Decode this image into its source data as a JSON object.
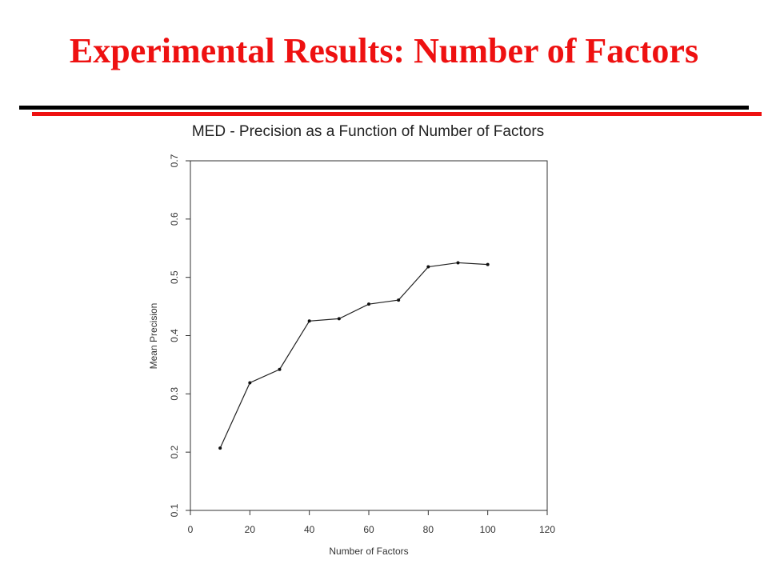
{
  "slide": {
    "title": "Experimental Results: Number of Factors",
    "colors": {
      "title": "#ee1111",
      "rule_top": "#000000",
      "rule_bottom": "#ee1111"
    }
  },
  "chart_data": {
    "type": "line",
    "title": "MED - Precision as a Function of Number of Factors",
    "xlabel": "Number of Factors",
    "ylabel": "Mean Precision",
    "xlim": [
      0,
      120
    ],
    "ylim": [
      0.1,
      0.7
    ],
    "xticks": [
      "0",
      "20",
      "40",
      "60",
      "80",
      "100",
      "120"
    ],
    "yticks": [
      "0.1",
      "0.2",
      "0.3",
      "0.4",
      "0.5",
      "0.6",
      "0.7"
    ],
    "grid": false,
    "series": [
      {
        "x": [
          10,
          20,
          30,
          40,
          50,
          60,
          70,
          80,
          90,
          100
        ],
        "y": [
          0.207,
          0.319,
          0.342,
          0.425,
          0.429,
          0.454,
          0.461,
          0.518,
          0.525,
          0.522
        ]
      }
    ]
  }
}
